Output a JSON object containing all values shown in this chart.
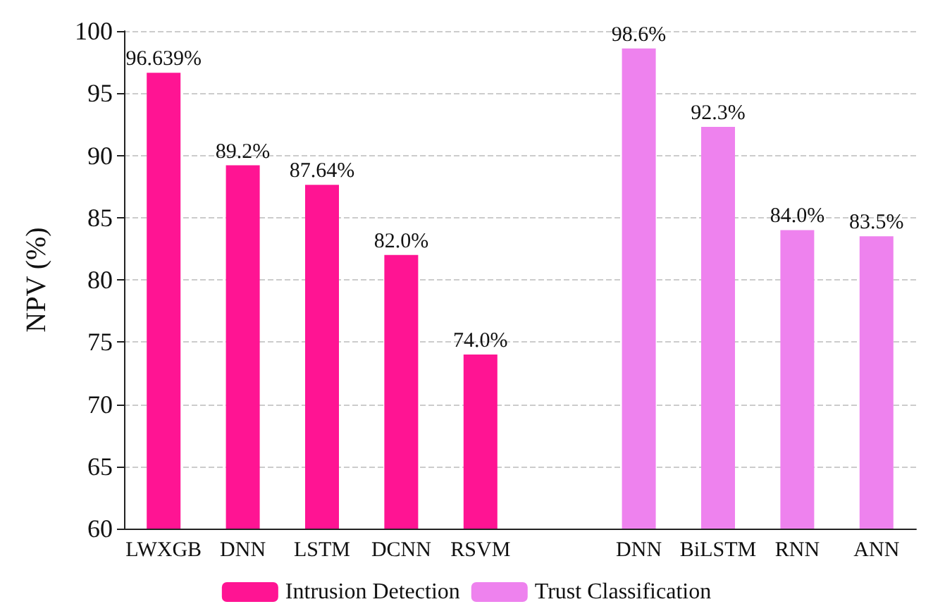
{
  "chart_data": {
    "type": "bar",
    "ylabel": "NPV (%)",
    "categories": [
      "LWXGB",
      "DNN",
      "LSTM",
      "DCNN",
      "RSVM",
      null,
      "DNN",
      "BiLSTM",
      "RNN",
      "ANN"
    ],
    "series": [
      {
        "name": "Intrusion Detection",
        "color": "#ff1493",
        "values": [
          96.639,
          89.2,
          87.64,
          82.0,
          74.0,
          null,
          null,
          null,
          null,
          null
        ],
        "value_labels": [
          "96.639%",
          "89.2%",
          "87.64%",
          "82.0%",
          "74.0%",
          null,
          null,
          null,
          null,
          null
        ]
      },
      {
        "name": "Trust Classification",
        "color": "#ee82ee",
        "values": [
          null,
          null,
          null,
          null,
          null,
          null,
          98.6,
          92.3,
          84.0,
          83.5
        ],
        "value_labels": [
          null,
          null,
          null,
          null,
          null,
          null,
          "98.6%",
          "92.3%",
          "84.0%",
          "83.5%"
        ]
      }
    ],
    "ylim": [
      60,
      100
    ],
    "yticks": [
      60,
      65,
      70,
      75,
      80,
      85,
      90,
      95,
      100
    ],
    "grid": "y",
    "legend": "bottom"
  }
}
